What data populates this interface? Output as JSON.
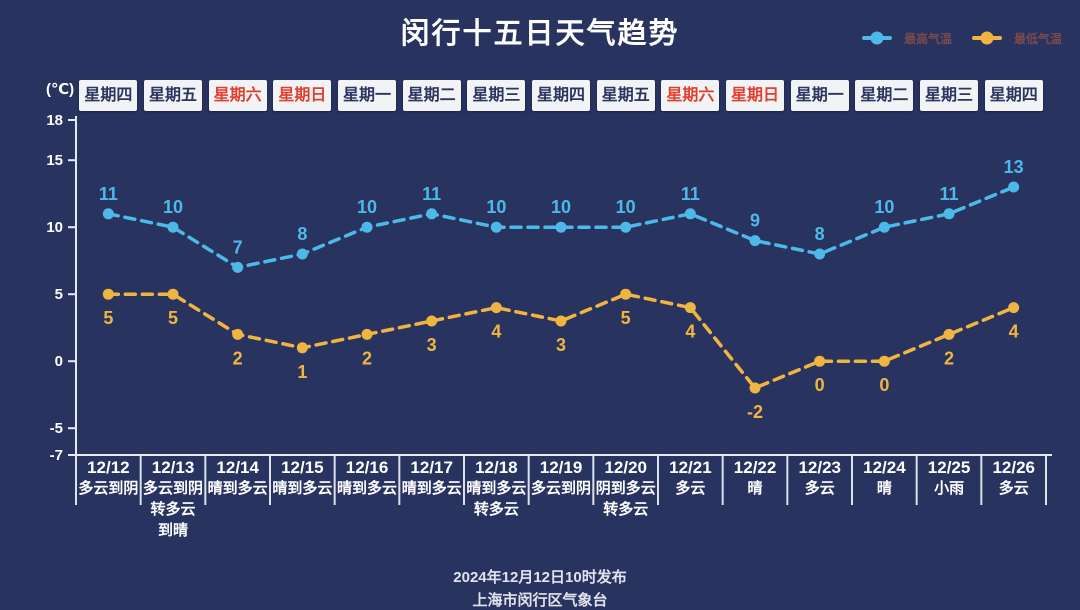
{
  "header": {
    "title": "闵行十五日天气趋势"
  },
  "legend": [
    {
      "label": "最高气温",
      "color": "#4db9e8"
    },
    {
      "label": "最低气温",
      "color": "#f0b541"
    }
  ],
  "chart_data": {
    "type": "line",
    "title": "闵行十五日天气趋势",
    "unit_label": "(℃)",
    "ylim": [
      -7,
      18
    ],
    "y_ticks": [
      18,
      15,
      10,
      5,
      0,
      -5,
      -7
    ],
    "grid": false,
    "legend_position": "top-right",
    "categories": [
      "12/12",
      "12/13",
      "12/14",
      "12/15",
      "12/16",
      "12/17",
      "12/18",
      "12/19",
      "12/20",
      "12/21",
      "12/22",
      "12/23",
      "12/24",
      "12/25",
      "12/26"
    ],
    "weekdays": [
      {
        "label": "星期四",
        "weekend": false
      },
      {
        "label": "星期五",
        "weekend": false
      },
      {
        "label": "星期六",
        "weekend": true
      },
      {
        "label": "星期日",
        "weekend": true
      },
      {
        "label": "星期一",
        "weekend": false
      },
      {
        "label": "星期二",
        "weekend": false
      },
      {
        "label": "星期三",
        "weekend": false
      },
      {
        "label": "星期四",
        "weekend": false
      },
      {
        "label": "星期五",
        "weekend": false
      },
      {
        "label": "星期六",
        "weekend": true
      },
      {
        "label": "星期日",
        "weekend": true
      },
      {
        "label": "星期一",
        "weekend": false
      },
      {
        "label": "星期二",
        "weekend": false
      },
      {
        "label": "星期三",
        "weekend": false
      },
      {
        "label": "星期四",
        "weekend": false
      }
    ],
    "weather": [
      [
        "多云到阴"
      ],
      [
        "多云到阴",
        "转多云",
        "到晴"
      ],
      [
        "晴到多云"
      ],
      [
        "晴到多云"
      ],
      [
        "晴到多云"
      ],
      [
        "晴到多云"
      ],
      [
        "晴到多云",
        "转多云"
      ],
      [
        "多云到阴"
      ],
      [
        "阴到多云",
        "转多云"
      ],
      [
        "多云"
      ],
      [
        "晴"
      ],
      [
        "多云"
      ],
      [
        "晴"
      ],
      [
        "小雨"
      ],
      [
        "多云"
      ]
    ],
    "series": [
      {
        "name": "最高气温",
        "color": "#4db9e8",
        "label_position": "above",
        "values": [
          11,
          10,
          7,
          8,
          10,
          11,
          10,
          10,
          10,
          11,
          9,
          8,
          10,
          11,
          13
        ]
      },
      {
        "name": "最低气温",
        "color": "#f0b541",
        "label_position": "below",
        "values": [
          5,
          5,
          2,
          1,
          2,
          3,
          4,
          3,
          5,
          4,
          -2,
          0,
          0,
          2,
          4
        ]
      }
    ]
  },
  "footer": {
    "line1": "2024年12月12日10时发布",
    "line2": "上海市闵行区气象台"
  },
  "colors": {
    "background": "#293360",
    "axis": "#e9ebf2",
    "divider": "#dde1ec",
    "tick_text": "#ffffff",
    "weekend_red": "#e23e2e",
    "badge_bg": "#f2f3f5",
    "badge_text": "#2c3561",
    "legend_text": "#7a4a4a",
    "footer_text": "#e3e3ec"
  }
}
